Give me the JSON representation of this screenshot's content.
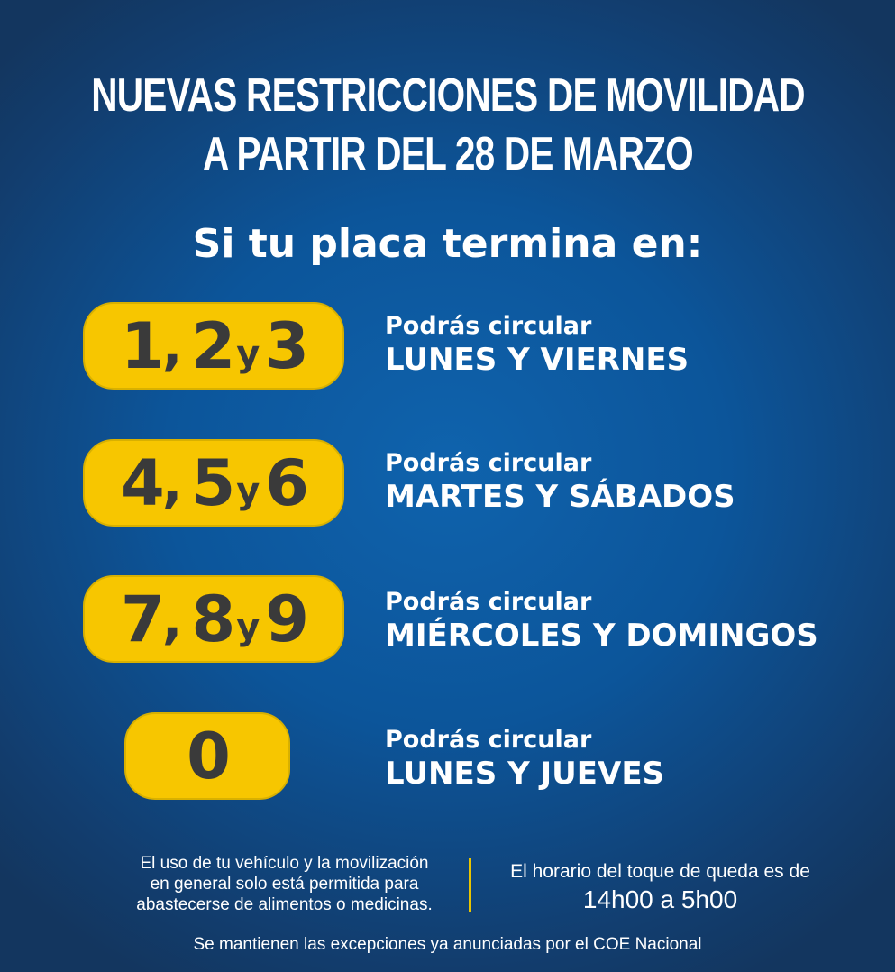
{
  "title": {
    "line1": "NUEVAS RESTRICCIONES DE MOVILIDAD",
    "line2": "A PARTIR DEL 28 DE MARZO"
  },
  "subtitle": "Si tu placa termina en:",
  "rows": [
    {
      "d1": "1",
      "d2": "2",
      "d3": "3",
      "conj": "y",
      "label": "Podrás circular",
      "days": "LUNES Y VIERNES"
    },
    {
      "d1": "4",
      "d2": "5",
      "d3": "6",
      "conj": "y",
      "label": "Podrás circular",
      "days": "MARTES Y SÁBADOS"
    },
    {
      "d1": "7",
      "d2": "8",
      "d3": "9",
      "conj": "y",
      "label": "Podrás circular",
      "days": "MIÉRCOLES Y DOMINGOS"
    },
    {
      "d1": "0",
      "label": "Podrás circular",
      "days": "LUNES Y JUEVES"
    }
  ],
  "footer": {
    "left": [
      "El uso de tu vehículo y la movilización",
      "en general solo está permitida para",
      "abastecerse de alimentos o medicinas."
    ],
    "right_line1": "El horario del toque de queda es de",
    "right_line2": "14h00 a 5h00",
    "bottom": "Se mantienen las excepciones ya anunciadas por el COE Nacional"
  },
  "colors": {
    "background": "#0c559a",
    "pill": "#f7c600",
    "pill_text": "#3a3a3a",
    "divider": "#e9c400"
  }
}
